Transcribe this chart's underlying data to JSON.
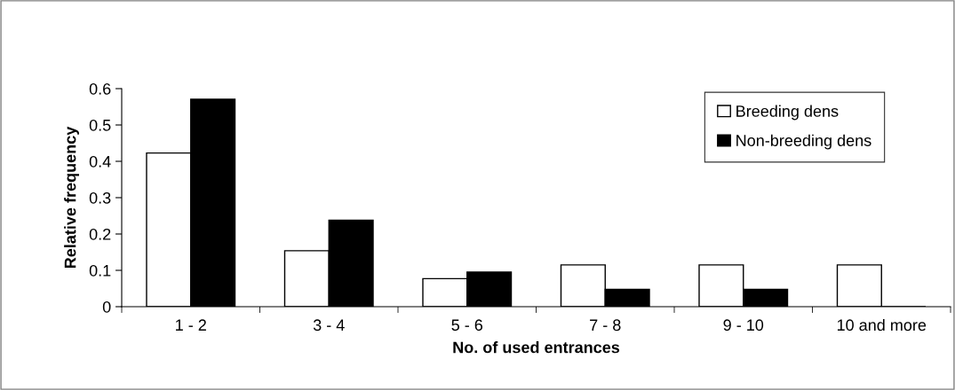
{
  "chart_data": {
    "type": "bar",
    "xlabel": "No. of used entrances",
    "ylabel": "Relative frequency",
    "categories": [
      "1 - 2",
      "3 - 4",
      "5 - 6",
      "7 - 8",
      "9 - 10",
      "10 and more"
    ],
    "series": [
      {
        "name": "Breeding dens",
        "color": "#ffffff",
        "values": [
          0.423,
          0.154,
          0.077,
          0.115,
          0.115,
          0.115
        ]
      },
      {
        "name": "Non-breeding dens",
        "color": "#000000",
        "values": [
          0.571,
          0.238,
          0.095,
          0.048,
          0.048,
          0
        ]
      }
    ],
    "ylim": [
      0,
      0.6
    ],
    "yticks": [
      0,
      0.1,
      0.2,
      0.3,
      0.4,
      0.5,
      0.6
    ],
    "grid": false,
    "legend": "top right"
  }
}
